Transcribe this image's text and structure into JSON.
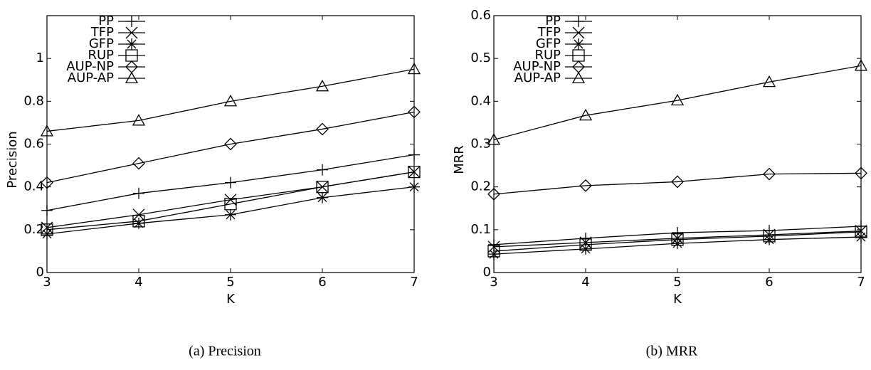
{
  "chart_data": [
    {
      "type": "line",
      "caption": "(a) Precision",
      "x_label": "K",
      "y_label": "Precision",
      "x": [
        3,
        4,
        5,
        6,
        7
      ],
      "xlim": [
        3,
        7
      ],
      "xticks": [
        3,
        4,
        5,
        6,
        7
      ],
      "ylim": [
        0,
        1.2
      ],
      "yticks": [
        0,
        0.2,
        0.4,
        0.6,
        0.8,
        1
      ],
      "series": [
        {
          "name": "PP",
          "color": "#000000",
          "marker": "plus",
          "values": [
            0.29,
            0.37,
            0.42,
            0.48,
            0.55
          ]
        },
        {
          "name": "TFP",
          "color": "#000000",
          "marker": "cross",
          "values": [
            0.21,
            0.27,
            0.34,
            0.4,
            0.47
          ]
        },
        {
          "name": "GFP",
          "color": "#000000",
          "marker": "asterisk",
          "values": [
            0.18,
            0.23,
            0.27,
            0.35,
            0.4
          ]
        },
        {
          "name": "RUP",
          "color": "#000000",
          "marker": "square",
          "values": [
            0.2,
            0.24,
            0.32,
            0.4,
            0.47
          ]
        },
        {
          "name": "AUP-NP",
          "color": "#000000",
          "marker": "diamond",
          "values": [
            0.42,
            0.51,
            0.6,
            0.67,
            0.75
          ]
        },
        {
          "name": "AUP-AP",
          "color": "#000000",
          "marker": "triangle",
          "values": [
            0.66,
            0.71,
            0.8,
            0.87,
            0.95
          ]
        }
      ]
    },
    {
      "type": "line",
      "caption": "(b) MRR",
      "x_label": "K",
      "y_label": "MRR",
      "x": [
        3,
        4,
        5,
        6,
        7
      ],
      "xlim": [
        3,
        7
      ],
      "xticks": [
        3,
        4,
        5,
        6,
        7
      ],
      "ylim": [
        0,
        0.6
      ],
      "yticks": [
        0,
        0.1,
        0.2,
        0.3,
        0.4,
        0.5,
        0.6
      ],
      "series": [
        {
          "name": "PP",
          "color": "#000000",
          "marker": "plus",
          "values": [
            0.065,
            0.08,
            0.093,
            0.098,
            0.108
          ]
        },
        {
          "name": "TFP",
          "color": "#000000",
          "marker": "cross",
          "values": [
            0.06,
            0.07,
            0.08,
            0.088,
            0.097
          ]
        },
        {
          "name": "GFP",
          "color": "#000000",
          "marker": "asterisk",
          "values": [
            0.043,
            0.055,
            0.068,
            0.077,
            0.083
          ]
        },
        {
          "name": "RUP",
          "color": "#000000",
          "marker": "square",
          "values": [
            0.05,
            0.065,
            0.077,
            0.085,
            0.095
          ]
        },
        {
          "name": "AUP-NP",
          "color": "#000000",
          "marker": "diamond",
          "values": [
            0.183,
            0.203,
            0.212,
            0.23,
            0.232
          ]
        },
        {
          "name": "AUP-AP",
          "color": "#000000",
          "marker": "triangle",
          "values": [
            0.31,
            0.367,
            0.402,
            0.445,
            0.483
          ]
        }
      ]
    }
  ]
}
